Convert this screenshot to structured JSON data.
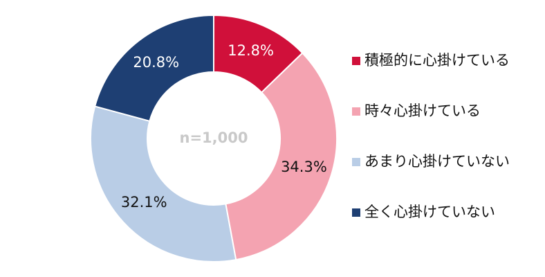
{
  "chart_data": {
    "type": "donut",
    "center_label": "n=1,000",
    "categories": [
      "積極的に心掛けている",
      "時々心掛けている",
      "あまり心掛けていない",
      "全く心掛けていない"
    ],
    "values": [
      12.8,
      34.3,
      32.1,
      20.8
    ],
    "value_labels": [
      "12.8%",
      "34.3%",
      "32.1%",
      "20.8%"
    ],
    "colors": [
      "#d0103a",
      "#f4a3b1",
      "#b9cde6",
      "#1e3f73"
    ],
    "legend": "right"
  }
}
